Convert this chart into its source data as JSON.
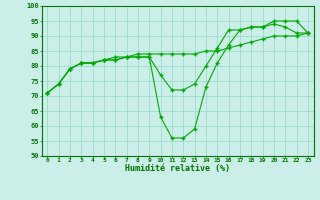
{
  "xlabel": "Humidité relative (%)",
  "ylabel": "",
  "background_color": "#cceee8",
  "grid_color": "#99ddcc",
  "line_color": "#00aa00",
  "xlim": [
    -0.5,
    23.5
  ],
  "ylim": [
    50,
    100
  ],
  "yticks": [
    50,
    55,
    60,
    65,
    70,
    75,
    80,
    85,
    90,
    95,
    100
  ],
  "xticks": [
    0,
    1,
    2,
    3,
    4,
    5,
    6,
    7,
    8,
    9,
    10,
    11,
    12,
    13,
    14,
    15,
    16,
    17,
    18,
    19,
    20,
    21,
    22,
    23
  ],
  "series": [
    [
      71,
      74,
      79,
      81,
      81,
      82,
      83,
      83,
      83,
      83,
      63,
      56,
      56,
      59,
      73,
      81,
      87,
      92,
      93,
      93,
      95,
      95,
      95,
      91
    ],
    [
      71,
      74,
      79,
      81,
      81,
      82,
      82,
      83,
      83,
      83,
      77,
      72,
      72,
      74,
      80,
      86,
      92,
      92,
      93,
      93,
      94,
      93,
      91,
      91
    ],
    [
      71,
      74,
      79,
      81,
      81,
      82,
      82,
      83,
      84,
      84,
      84,
      84,
      84,
      84,
      85,
      85,
      86,
      87,
      88,
      89,
      90,
      90,
      90,
      91
    ]
  ]
}
